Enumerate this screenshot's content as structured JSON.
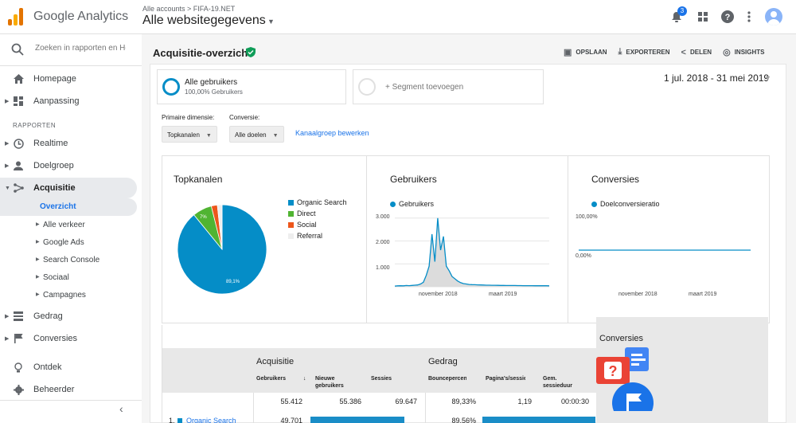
{
  "app": {
    "name": "Google Analytics",
    "account_crumb": "Alle accounts",
    "property_crumb": "FIFA-19.NET",
    "view_title": "Alle websitegegevens"
  },
  "topbar": {
    "notification_count": "3",
    "icons": [
      "bell-icon",
      "apps-icon",
      "help-icon",
      "more-icon",
      "avatar"
    ]
  },
  "sidebar": {
    "search_placeholder": "Zoeken in rapporten en Help",
    "homepage": "Homepage",
    "customization": "Aanpassing",
    "section_reports": "RAPPORTEN",
    "realtime": "Realtime",
    "audience": "Doelgroep",
    "acquisition": "Acquisitie",
    "sub": {
      "overview": "Overzicht",
      "all_traffic": "Alle verkeer",
      "google_ads": "Google Ads",
      "search_console": "Search Console",
      "social": "Sociaal",
      "campaigns": "Campagnes"
    },
    "behavior": "Gedrag",
    "conversions": "Conversies",
    "discover": "Ontdek",
    "admin": "Beheerder"
  },
  "report": {
    "title": "Acquisitie-overzicht",
    "actions": {
      "save": "OPSLAAN",
      "export": "EXPORTEREN",
      "share": "DELEN",
      "insights": "INSIGHTS"
    },
    "segment": {
      "name": "Alle gebruikers",
      "sub": "100,00% Gebruikers",
      "add": "+ Segment toevoegen"
    },
    "date_range": "1 jul. 2018 - 31 mei 2019",
    "primary_dimension_label": "Primaire dimensie:",
    "primary_dimension_value": "Topkanalen",
    "conversion_label": "Conversie:",
    "conversion_value": "Alle doelen",
    "edit_channel_link": "Kanaalgroep bewerken"
  },
  "colors": {
    "organic": "#058dc7",
    "direct": "#50b432",
    "social": "#ed561b",
    "referral": "#eeeeee",
    "accent": "#1a73e8"
  },
  "chart_data": [
    {
      "type": "pie",
      "title": "Topkanalen",
      "categories": [
        "Organic Search",
        "Direct",
        "Social",
        "Referral"
      ],
      "values": [
        89.1,
        7.0,
        2.2,
        1.7
      ],
      "labels": [
        "89,1%",
        "7%",
        "",
        ""
      ],
      "legend": "right"
    },
    {
      "type": "area",
      "title": "Gebruikers",
      "series": [
        {
          "name": "Gebruikers",
          "values": [
            30,
            40,
            45,
            40,
            55,
            50,
            60,
            70,
            80,
            120,
            200,
            500,
            900,
            2300,
            1100,
            3000,
            1600,
            2200,
            900,
            700,
            450,
            350,
            250,
            180,
            140,
            120,
            100,
            95,
            90,
            85,
            80,
            75,
            70,
            68,
            66,
            65,
            62,
            60,
            58,
            56,
            55,
            55,
            54,
            53,
            52,
            50,
            50,
            48,
            47,
            46,
            45,
            45,
            44,
            44,
            43
          ]
        }
      ],
      "x_ticks": [
        "november 2018",
        "maart 2019"
      ],
      "y_ticks": [
        "3.000",
        "2.000",
        "1.000"
      ],
      "ylim": [
        0,
        3200
      ]
    },
    {
      "type": "line",
      "title": "Conversies",
      "series": [
        {
          "name": "Doelconversieratio",
          "values": [
            0,
            0,
            0,
            0,
            0,
            0,
            0,
            0,
            0,
            0
          ]
        }
      ],
      "x_ticks": [
        "november 2018",
        "maart 2019"
      ],
      "y_ticks": [
        "100,00%",
        "0,00%"
      ],
      "ylim": [
        0,
        100
      ]
    }
  ],
  "table": {
    "group_acquisition": "Acquisitie",
    "group_behavior": "Gedrag",
    "group_conversions": "Conversies",
    "columns": {
      "users": "Gebruikers",
      "new_users": "Nieuwe gebruikers",
      "sessions": "Sessies",
      "bounce": "Bouncepercentage",
      "pages": "Pagina's/sessie",
      "duration": "Gem. sessieduur"
    },
    "totals": {
      "users": "55.412",
      "new_users": "55.386",
      "sessions": "69.647",
      "bounce": "89,33%",
      "pages": "1,19",
      "duration": "00:00:30"
    },
    "rows": [
      {
        "num": "1.",
        "channel": "Organic Search",
        "users": "49.701",
        "bounce": "89,56%",
        "users_share": 89.7,
        "bounce_share": 100
      }
    ]
  }
}
